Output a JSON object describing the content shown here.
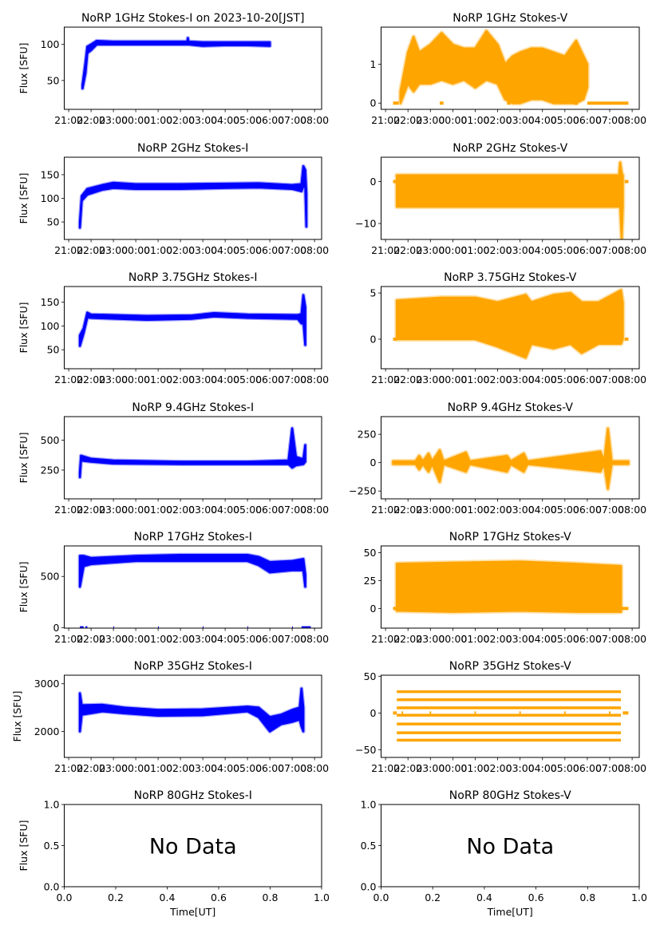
{
  "chart_data": [
    {
      "type": "area",
      "title": "NoRP 1GHz Stokes-I on 2023-10-20[JST]",
      "ylabel": "Flux [SFU]",
      "color": "#0000ff",
      "xlim": [
        "20:48",
        "08:19"
      ],
      "xticks": [
        "21:00",
        "22:00",
        "23:00",
        "00:00",
        "01:00",
        "02:00",
        "03:00",
        "04:00",
        "05:00",
        "06:00",
        "07:00",
        "08:00"
      ],
      "ylim": [
        10,
        124
      ],
      "yticks": [
        50,
        100
      ],
      "bands": [
        [
          "21:37",
          39,
          44
        ],
        [
          "21:45",
          60,
          75
        ],
        [
          "21:50",
          88,
          97
        ],
        [
          "22:00",
          92,
          100
        ],
        [
          "22:15",
          100,
          105
        ],
        [
          "23:00",
          100,
          104
        ],
        [
          "00:00",
          100,
          104
        ],
        [
          "01:00",
          100,
          104
        ],
        [
          "02:00",
          100,
          104
        ],
        [
          "02:18",
          100,
          104
        ],
        [
          "02:20",
          100,
          109
        ],
        [
          "02:22",
          100,
          104
        ],
        [
          "03:00",
          98,
          103
        ],
        [
          "04:00",
          99,
          103
        ],
        [
          "05:00",
          99,
          103
        ],
        [
          "06:00",
          98,
          103
        ]
      ]
    },
    {
      "type": "scatter",
      "title": "NoRP 1GHz Stokes-V",
      "ylabel": "",
      "color": "#ffa500",
      "xlim": [
        "20:48",
        "08:19"
      ],
      "xticks": [
        "21:00",
        "22:00",
        "23:00",
        "00:00",
        "01:00",
        "02:00",
        "03:00",
        "04:00",
        "05:00",
        "06:00",
        "07:00",
        "08:00"
      ],
      "ylim": [
        -0.16,
        1.95
      ],
      "yticks": [
        0,
        1
      ],
      "bands": [
        [
          "21:40",
          0,
          0.3
        ],
        [
          "22:00",
          0.5,
          1.3
        ],
        [
          "22:15",
          0.3,
          1.7
        ],
        [
          "22:30",
          0.5,
          1.3
        ],
        [
          "23:00",
          0.5,
          1.5
        ],
        [
          "23:30",
          0.6,
          1.8
        ],
        [
          "00:00",
          0.5,
          1.5
        ],
        [
          "00:30",
          0.6,
          1.4
        ],
        [
          "01:00",
          0.4,
          1.4
        ],
        [
          "01:30",
          0.6,
          1.85
        ],
        [
          "02:00",
          0.5,
          1.5
        ],
        [
          "02:20",
          0.1,
          1.0
        ],
        [
          "02:40",
          0,
          1.2
        ],
        [
          "03:00",
          0,
          1.3
        ],
        [
          "03:30",
          0.1,
          1.4
        ],
        [
          "04:00",
          0.1,
          1.4
        ],
        [
          "04:30",
          0,
          1.3
        ],
        [
          "05:00",
          0,
          1.2
        ],
        [
          "05:30",
          0,
          1.6
        ],
        [
          "05:50",
          0.1,
          1.2
        ],
        [
          "06:00",
          0.4,
          1.0
        ]
      ],
      "zero_segments": [
        [
          "21:20",
          "21:35"
        ],
        [
          "23:25",
          "23:35"
        ],
        [
          "02:25",
          "02:35"
        ],
        [
          "05:25",
          "05:35"
        ],
        [
          "06:00",
          "07:50"
        ]
      ]
    },
    {
      "type": "area",
      "title": "NoRP 2GHz Stokes-I",
      "ylabel": "Flux [SFU]",
      "color": "#0000ff",
      "xlim": [
        "20:48",
        "08:19"
      ],
      "xticks": [
        "21:00",
        "22:00",
        "23:00",
        "00:00",
        "01:00",
        "02:00",
        "03:00",
        "04:00",
        "05:00",
        "06:00",
        "07:00",
        "08:00"
      ],
      "ylim": [
        13,
        187
      ],
      "yticks": [
        50,
        100,
        150
      ],
      "bands": [
        [
          "21:30",
          38,
          50
        ],
        [
          "21:35",
          95,
          105
        ],
        [
          "21:50",
          108,
          120
        ],
        [
          "22:30",
          118,
          128
        ],
        [
          "23:00",
          122,
          133
        ],
        [
          "00:00",
          120,
          130
        ],
        [
          "02:00",
          120,
          130
        ],
        [
          "04:00",
          122,
          131
        ],
        [
          "05:30",
          123,
          132
        ],
        [
          "07:00",
          120,
          128
        ],
        [
          "07:25",
          115,
          130
        ],
        [
          "07:30",
          125,
          168
        ],
        [
          "07:35",
          125,
          160
        ],
        [
          "07:38",
          40,
          110
        ]
      ]
    },
    {
      "type": "scatter",
      "title": "NoRP 2GHz Stokes-V",
      "ylabel": "",
      "color": "#ffa500",
      "xlim": [
        "20:48",
        "08:19"
      ],
      "xticks": [
        "21:00",
        "22:00",
        "23:00",
        "00:00",
        "01:00",
        "02:00",
        "03:00",
        "04:00",
        "05:00",
        "06:00",
        "07:00",
        "08:00"
      ],
      "ylim": [
        -13.8,
        5.8
      ],
      "yticks": [
        -10,
        0
      ],
      "bands": [
        [
          "21:30",
          -6,
          1.5
        ],
        [
          "07:25",
          -6,
          1.5
        ],
        [
          "07:28",
          -6,
          4.5
        ],
        [
          "07:32",
          -13.5,
          2
        ],
        [
          "07:35",
          -6,
          1.5
        ]
      ],
      "zero_segments": [
        [
          "21:20",
          "21:30"
        ],
        [
          "07:40",
          "07:50"
        ]
      ]
    },
    {
      "type": "area",
      "title": "NoRP 3.75GHz Stokes-I",
      "ylabel": "Flux [SFU]",
      "color": "#0000ff",
      "xlim": [
        "20:48",
        "08:19"
      ],
      "xticks": [
        "21:00",
        "22:00",
        "23:00",
        "00:00",
        "01:00",
        "02:00",
        "03:00",
        "04:00",
        "05:00",
        "06:00",
        "07:00",
        "08:00"
      ],
      "ylim": [
        10,
        183
      ],
      "yticks": [
        50,
        100,
        150
      ],
      "bands": [
        [
          "21:30",
          58,
          80
        ],
        [
          "21:40",
          85,
          95
        ],
        [
          "21:50",
          118,
          128
        ],
        [
          "22:00",
          117,
          124
        ],
        [
          "00:30",
          113,
          121
        ],
        [
          "02:30",
          115,
          122
        ],
        [
          "03:30",
          120,
          127
        ],
        [
          "05:00",
          117,
          124
        ],
        [
          "07:15",
          115,
          123
        ],
        [
          "07:25",
          105,
          125
        ],
        [
          "07:30",
          110,
          165
        ],
        [
          "07:35",
          60,
          140
        ]
      ]
    },
    {
      "type": "scatter",
      "title": "NoRP 3.75GHz Stokes-V",
      "ylabel": "",
      "color": "#ffa500",
      "xlim": [
        "20:48",
        "08:19"
      ],
      "xticks": [
        "21:00",
        "22:00",
        "23:00",
        "00:00",
        "01:00",
        "02:00",
        "03:00",
        "04:00",
        "05:00",
        "06:00",
        "07:00",
        "08:00"
      ],
      "ylim": [
        -3.2,
        5.7
      ],
      "yticks": [
        0,
        5
      ],
      "bands": [
        [
          "21:30",
          0,
          4.2
        ],
        [
          "23:30",
          0,
          4.5
        ],
        [
          "01:00",
          0,
          4.5
        ],
        [
          "02:00",
          -0.8,
          4
        ],
        [
          "03:15",
          -2,
          4.8
        ],
        [
          "03:30",
          -0.5,
          4
        ],
        [
          "04:30",
          -1,
          4.8
        ],
        [
          "05:15",
          -0.5,
          5
        ],
        [
          "05:45",
          -1.5,
          4
        ],
        [
          "06:30",
          -0.5,
          4
        ],
        [
          "07:30",
          -0.5,
          5.3
        ],
        [
          "07:35",
          0,
          4
        ]
      ],
      "zero_segments": [
        [
          "21:20",
          "21:30"
        ],
        [
          "07:40",
          "07:50"
        ]
      ]
    },
    {
      "type": "area",
      "title": "NoRP 9.4GHz Stokes-I",
      "ylabel": "Flux [SFU]",
      "color": "#0000ff",
      "xlim": [
        "20:48",
        "08:19"
      ],
      "xticks": [
        "21:00",
        "22:00",
        "23:00",
        "00:00",
        "01:00",
        "02:00",
        "03:00",
        "04:00",
        "05:00",
        "06:00",
        "07:00",
        "08:00"
      ],
      "ylim": [
        9,
        698
      ],
      "yticks": [
        250,
        500
      ],
      "bands": [
        [
          "21:30",
          190,
          230
        ],
        [
          "21:33",
          330,
          370
        ],
        [
          "22:00",
          320,
          345
        ],
        [
          "23:00",
          305,
          330
        ],
        [
          "02:00",
          300,
          320
        ],
        [
          "05:00",
          300,
          320
        ],
        [
          "06:50",
          300,
          330
        ],
        [
          "07:00",
          270,
          600
        ],
        [
          "07:10",
          290,
          360
        ],
        [
          "07:30",
          300,
          340
        ],
        [
          "07:35",
          320,
          460
        ]
      ]
    },
    {
      "type": "scatter",
      "title": "NoRP 9.4GHz Stokes-V",
      "ylabel": "",
      "color": "#ffa500",
      "xlim": [
        "20:48",
        "08:19"
      ],
      "xticks": [
        "21:00",
        "22:00",
        "23:00",
        "00:00",
        "01:00",
        "02:00",
        "03:00",
        "04:00",
        "05:00",
        "06:00",
        "07:00",
        "08:00"
      ],
      "ylim": [
        -319,
        406
      ],
      "yticks": [
        -250,
        0,
        250
      ],
      "bands": [
        [
          "21:20",
          -12,
          12
        ],
        [
          "22:20",
          -12,
          12
        ],
        [
          "22:30",
          -60,
          60
        ],
        [
          "22:40",
          -12,
          12
        ],
        [
          "22:55",
          -80,
          80
        ],
        [
          "23:05",
          -12,
          12
        ],
        [
          "23:25",
          -170,
          110
        ],
        [
          "23:35",
          -12,
          12
        ],
        [
          "00:35",
          -80,
          90
        ],
        [
          "00:45",
          -12,
          12
        ],
        [
          "02:25",
          -80,
          60
        ],
        [
          "02:35",
          -12,
          12
        ],
        [
          "03:10",
          -80,
          80
        ],
        [
          "03:20",
          -12,
          12
        ],
        [
          "06:35",
          -80,
          100
        ],
        [
          "06:45",
          -12,
          12
        ],
        [
          "06:55",
          -230,
          300
        ],
        [
          "07:05",
          -12,
          12
        ],
        [
          "07:50",
          -12,
          12
        ]
      ]
    },
    {
      "type": "area",
      "title": "NoRP 17GHz Stokes-I",
      "ylabel": "Flux [SFU]",
      "color": "#0000ff",
      "xlim": [
        "20:48",
        "08:19"
      ],
      "xticks": [
        "21:00",
        "22:00",
        "23:00",
        "00:00",
        "01:00",
        "02:00",
        "03:00",
        "04:00",
        "05:00",
        "06:00",
        "07:00",
        "08:00"
      ],
      "ylim": [
        -3,
        797
      ],
      "yticks": [
        0,
        500
      ],
      "bands": [
        [
          "21:30",
          400,
          700
        ],
        [
          "21:40",
          600,
          700
        ],
        [
          "22:00",
          620,
          680
        ],
        [
          "00:00",
          650,
          700
        ],
        [
          "02:00",
          650,
          710
        ],
        [
          "05:00",
          650,
          710
        ],
        [
          "05:30",
          610,
          690
        ],
        [
          "06:00",
          540,
          640
        ],
        [
          "07:00",
          560,
          650
        ],
        [
          "07:30",
          560,
          670
        ],
        [
          "07:35",
          400,
          520
        ]
      ],
      "zero_segments": [
        [
          "21:30",
          "21:40"
        ],
        [
          "21:45",
          "21:50"
        ],
        [
          "23:00",
          "23:02"
        ],
        [
          "01:00",
          "01:02"
        ],
        [
          "03:00",
          "03:02"
        ],
        [
          "05:00",
          "05:02"
        ],
        [
          "07:00",
          "07:02"
        ],
        [
          "07:25",
          "07:50"
        ]
      ]
    },
    {
      "type": "scatter",
      "title": "NoRP 17GHz Stokes-V",
      "ylabel": "",
      "color": "#ffa500",
      "xlim": [
        "20:48",
        "08:19"
      ],
      "xticks": [
        "21:00",
        "22:00",
        "23:00",
        "00:00",
        "01:00",
        "02:00",
        "03:00",
        "04:00",
        "05:00",
        "06:00",
        "07:00",
        "08:00"
      ],
      "ylim": [
        -17.6,
        56
      ],
      "yticks": [
        0,
        25,
        50
      ],
      "bands": [
        [
          "21:30",
          -2,
          40
        ],
        [
          "00:00",
          -3,
          41
        ],
        [
          "03:00",
          -2,
          42
        ],
        [
          "05:30",
          -3,
          40
        ],
        [
          "07:30",
          -3,
          38
        ]
      ],
      "zero_segments": [
        [
          "21:20",
          "07:50"
        ]
      ]
    },
    {
      "type": "area",
      "title": "NoRP 35GHz Stokes-I",
      "ylabel": "Flux [SFU]",
      "color": "#0000ff",
      "xlim": [
        "20:48",
        "08:19"
      ],
      "xticks": [
        "21:00",
        "22:00",
        "23:00",
        "00:00",
        "01:00",
        "02:00",
        "03:00",
        "04:00",
        "05:00",
        "06:00",
        "07:00",
        "08:00"
      ],
      "ylim": [
        1453,
        3180
      ],
      "yticks": [
        2000,
        3000
      ],
      "bands": [
        [
          "21:30",
          2000,
          2800
        ],
        [
          "21:35",
          2350,
          2550
        ],
        [
          "22:30",
          2420,
          2560
        ],
        [
          "23:30",
          2380,
          2500
        ],
        [
          "01:00",
          2330,
          2450
        ],
        [
          "03:00",
          2340,
          2460
        ],
        [
          "05:00",
          2420,
          2520
        ],
        [
          "05:30",
          2300,
          2500
        ],
        [
          "06:00",
          2000,
          2300
        ],
        [
          "06:30",
          2150,
          2350
        ],
        [
          "07:00",
          2200,
          2450
        ],
        [
          "07:20",
          2250,
          2500
        ],
        [
          "07:25",
          2100,
          2900
        ],
        [
          "07:30",
          2000,
          2500
        ]
      ]
    },
    {
      "type": "scatter",
      "title": "NoRP 35GHz Stokes-V",
      "ylabel": "",
      "color": "#ffa500",
      "xlim": [
        "20:48",
        "08:19"
      ],
      "xticks": [
        "21:00",
        "22:00",
        "23:00",
        "00:00",
        "01:00",
        "02:00",
        "03:00",
        "04:00",
        "05:00",
        "06:00",
        "07:00",
        "08:00"
      ],
      "ylim": [
        -60.5,
        51.4
      ],
      "yticks": [
        -50,
        0,
        50
      ],
      "levels": [
        29,
        18,
        7,
        -3,
        -15,
        -27,
        -37
      ],
      "level_range": [
        "21:30",
        "07:30"
      ],
      "zero_segments": [
        [
          "21:20",
          "21:30"
        ],
        [
          "21:43",
          "21:47"
        ],
        [
          "22:58",
          "23:02"
        ],
        [
          "00:58",
          "01:02"
        ],
        [
          "02:58",
          "03:02"
        ],
        [
          "04:58",
          "05:02"
        ],
        [
          "06:58",
          "07:02"
        ],
        [
          "07:35",
          "07:50"
        ]
      ]
    },
    {
      "type": "line",
      "title": "NoRP 80GHz Stokes-I",
      "ylabel": "Flux [SFU]",
      "xlabel": "Time[UT]",
      "no_data": "No Data",
      "xlim": [
        0,
        1
      ],
      "xticks": [
        "0.0",
        "0.2",
        "0.4",
        "0.6",
        "0.8",
        "1.0"
      ],
      "ylim": [
        0,
        1
      ],
      "yticks": [
        "0.0",
        "0.5",
        "1.0"
      ]
    },
    {
      "type": "line",
      "title": "NoRP 80GHz Stokes-V",
      "ylabel": "",
      "xlabel": "Time[UT]",
      "no_data": "No Data",
      "xlim": [
        0,
        1
      ],
      "xticks": [
        "0.0",
        "0.2",
        "0.4",
        "0.6",
        "0.8",
        "1.0"
      ],
      "ylim": [
        0,
        1
      ],
      "yticks": [
        "0.0",
        "0.5",
        "1.0"
      ]
    }
  ]
}
